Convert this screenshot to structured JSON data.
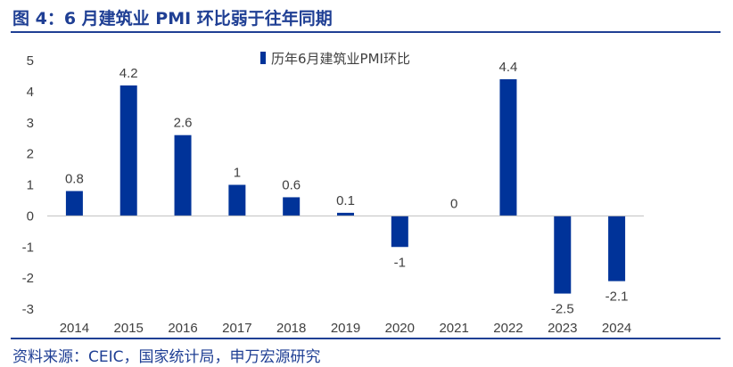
{
  "header": {
    "title": "图 4：6 月建筑业 PMI 环比弱于往年同期"
  },
  "footer": {
    "source": "资料来源：CEIC，国家统计局，申万宏源研究"
  },
  "colors": {
    "bar": "#003399",
    "accent": "#1f3f94",
    "axis": "#bfbfbf"
  },
  "chart_data": {
    "type": "bar",
    "categories": [
      "2014",
      "2015",
      "2016",
      "2017",
      "2018",
      "2019",
      "2020",
      "2021",
      "2022",
      "2023",
      "2024"
    ],
    "series": [
      {
        "name": "历年6月建筑业PMI环比",
        "values": [
          0.8,
          4.2,
          2.6,
          1,
          0.6,
          0.1,
          -1,
          0,
          4.4,
          -2.5,
          -2.1
        ]
      }
    ],
    "data_labels": [
      "0.8",
      "4.2",
      "2.6",
      "1",
      "0.6",
      "0.1",
      "-1",
      "0",
      "4.4",
      "-2.5",
      "-2.1"
    ],
    "yticks": [
      5,
      4,
      3,
      2,
      1,
      0,
      -1,
      -2,
      -3
    ],
    "ytick_labels": [
      "5",
      "4",
      "3",
      "2",
      "1",
      "0",
      "-1",
      "-2",
      "-3"
    ],
    "ylim": [
      -3,
      5
    ],
    "legend_position": "top-center",
    "grid": false
  }
}
